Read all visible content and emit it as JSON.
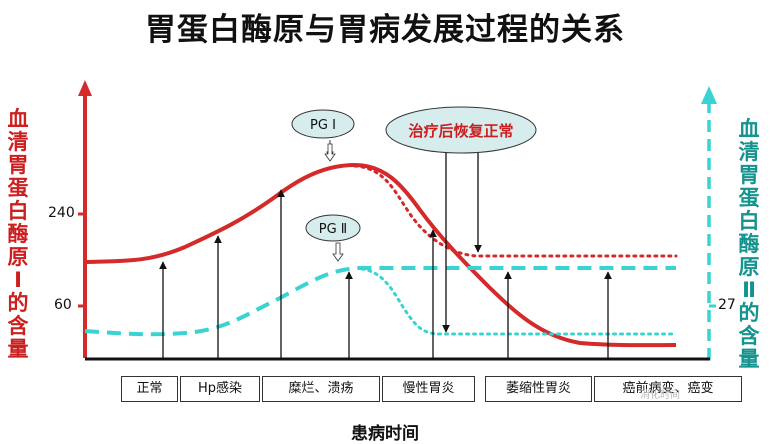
{
  "title": "胃蛋白酶原与胃病发展过程的关系",
  "left_axis_label": [
    "血",
    "清",
    "胃",
    "蛋",
    "白",
    "酶",
    "原",
    "Ⅰ",
    "的",
    "含",
    "量"
  ],
  "right_axis_label": [
    "血",
    "清",
    "胃",
    "蛋",
    "白",
    "酶",
    "原",
    "Ⅱ",
    "的",
    "含",
    "量"
  ],
  "left_ticks": [
    "240",
    "60"
  ],
  "right_ticks": [
    "27"
  ],
  "x_axis_label": "患病时间",
  "stages": [
    "正常",
    "Hp感染",
    "糜烂、溃疡",
    "慢性胃炎",
    "萎缩性胃炎",
    "癌前病变、癌变"
  ],
  "callouts": {
    "pg1": "PG Ⅰ",
    "pg2": "PG Ⅱ",
    "recovery": "治疗后恢复正常"
  },
  "watermark": "消化时间",
  "colors": {
    "pg1": "#d42a2a",
    "pg2": "#3ad3d3",
    "left_axis": "#cc1f1f",
    "right_axis": "#14938f",
    "bubble_fill": "#d7eded",
    "bubble_border": "#333333"
  }
}
